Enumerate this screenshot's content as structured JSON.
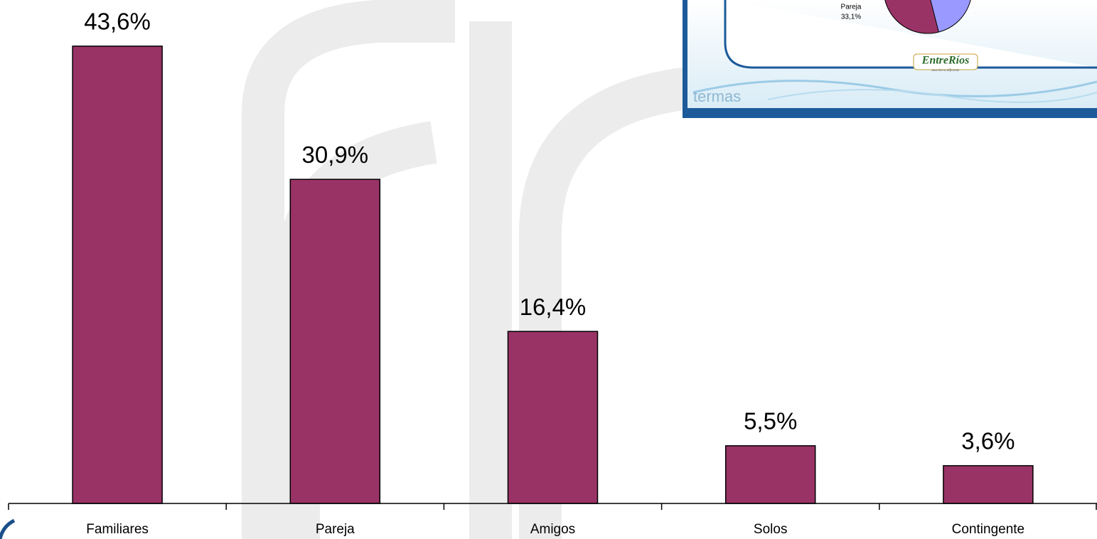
{
  "chart_data": {
    "type": "bar",
    "categories": [
      "Familiares",
      "Pareja",
      "Amigos",
      "Solos",
      "Contingente"
    ],
    "values": [
      43.6,
      30.9,
      16.4,
      5.5,
      3.6
    ],
    "value_labels": [
      "43,6%",
      "30,9%",
      "16,4%",
      "5,5%",
      "3,6%"
    ],
    "color": "#993366"
  },
  "inset": {
    "slice_label": "Pareja",
    "slice_value": 33.1,
    "slice_value_label": "33,1%",
    "slice_color": "#993366",
    "other_color": "#9999ff",
    "logo": "EntreRíos",
    "logo_tagline": "una tierra diferente",
    "caption": "termas"
  }
}
